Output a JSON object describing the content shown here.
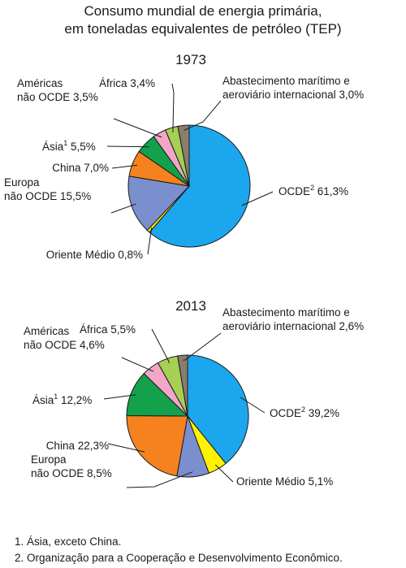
{
  "title": {
    "line1": "Consumo mundial de energia primária,",
    "line2": "em toneladas equivalentes de petróleo (TEP)"
  },
  "footnotes": [
    "1. Ásia, exceto China.",
    "2. Organização para a Cooperação e Desenvolvimento Econômico."
  ],
  "colors": {
    "OCDE": "#1ba6ee",
    "Oriente Médio": "#fff200",
    "Europa": "#7b8fce",
    "China": "#f5821f",
    "Ásia": "#13a14b",
    "Américas": "#f2a7c9",
    "África": "#a6cf55",
    "Abastecimento": "#8b7d6b"
  },
  "chart_data": [
    {
      "type": "pie",
      "title": "1973",
      "slices": [
        {
          "label": "OCDE",
          "sup": "2",
          "value": 61.3,
          "text": "61,3%"
        },
        {
          "label": "Oriente Médio",
          "value": 0.8,
          "text": "0,8%"
        },
        {
          "label": "Europa não OCDE",
          "value": 15.5,
          "text": "15,5%"
        },
        {
          "label": "China",
          "value": 7.0,
          "text": "7,0%"
        },
        {
          "label": "Ásia",
          "sup": "1",
          "value": 5.5,
          "text": "5,5%"
        },
        {
          "label": "Américas não OCDE",
          "value": 3.5,
          "text": "3,5%"
        },
        {
          "label": "África",
          "value": 3.4,
          "text": "3,4%"
        },
        {
          "label": "Abastecimento marítimo e aeroviário internacional",
          "value": 3.0,
          "text": "3,0%"
        }
      ]
    },
    {
      "type": "pie",
      "title": "2013",
      "slices": [
        {
          "label": "OCDE",
          "sup": "2",
          "value": 39.2,
          "text": "39,2%"
        },
        {
          "label": "Oriente Médio",
          "value": 5.1,
          "text": "5,1%"
        },
        {
          "label": "Europa não OCDE",
          "value": 8.5,
          "text": "8,5%"
        },
        {
          "label": "China",
          "value": 22.3,
          "text": "22,3%"
        },
        {
          "label": "Ásia",
          "sup": "1",
          "value": 12.2,
          "text": "12,2%"
        },
        {
          "label": "Américas não OCDE",
          "value": 4.6,
          "text": "4,6%"
        },
        {
          "label": "África",
          "value": 5.5,
          "text": "5,5%"
        },
        {
          "label": "Abastecimento marítimo e aeroviário internacional",
          "value": 2.6,
          "text": "2,6%"
        }
      ]
    }
  ]
}
